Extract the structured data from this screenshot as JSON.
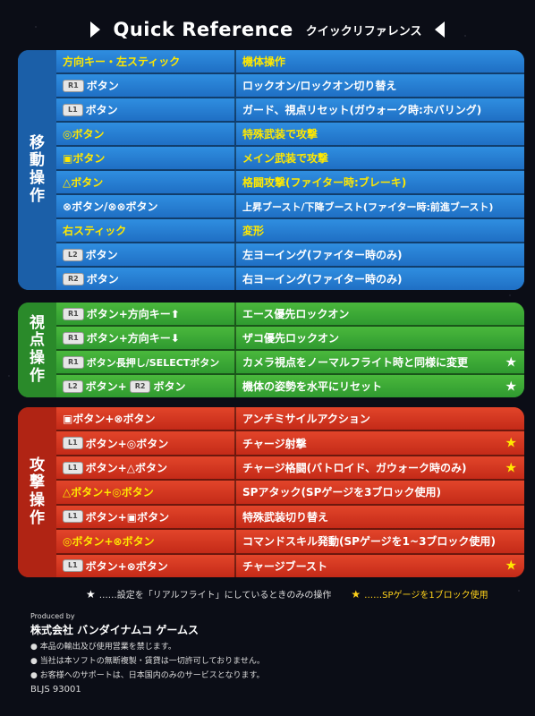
{
  "header": {
    "title_en": "Quick Reference",
    "title_jp": "クイックリファレンス"
  },
  "sections": {
    "move": {
      "label": [
        "移",
        "動",
        "操",
        "作"
      ],
      "rows": [
        {
          "left": "方向キー・左スティック",
          "right": "機体操作"
        },
        {
          "badge": "R1",
          "left": "ボタン",
          "right": "ロックオン/ロックオン切り替え"
        },
        {
          "badge": "L1",
          "left": "ボタン",
          "right": "ガード、視点リセット(ガウォーク時:ホバリング)"
        },
        {
          "left": "◎ボタン",
          "right": "特殊武装で攻撃"
        },
        {
          "left": "▣ボタン",
          "right": "メイン武装で攻撃"
        },
        {
          "left": "△ボタン",
          "right": "格闘攻撃(ファイター時:ブレーキ)"
        },
        {
          "left": "⊗ボタン/⊗⊗ボタン",
          "right": "上昇ブースト/下降ブースト(ファイター時:前進ブースト)"
        },
        {
          "left": "右スティック",
          "right": "変形"
        },
        {
          "badge": "L2",
          "left": "ボタン",
          "right": "左ヨーイング(ファイター時のみ)"
        },
        {
          "badge": "R2",
          "left": "ボタン",
          "right": "右ヨーイング(ファイター時のみ)"
        }
      ]
    },
    "view": {
      "label": [
        "視",
        "点",
        "操",
        "作"
      ],
      "rows": [
        {
          "badge": "R1",
          "left": "ボタン+方向キー⬆",
          "right": "エース優先ロックオン"
        },
        {
          "badge": "R1",
          "left": "ボタン+方向キー⬇",
          "right": "ザコ優先ロックオン"
        },
        {
          "badge": "R1",
          "left": "ボタン長押し/SELECTボタン",
          "right": "カメラ視点をノーマルフライト時と同様に変更",
          "star": "★"
        },
        {
          "badge": "L2",
          "left": "ボタン+",
          "badge2": "R2",
          "left2": "ボタン",
          "right": "機体の姿勢を水平にリセット",
          "star": "★"
        }
      ]
    },
    "attack": {
      "label": [
        "攻",
        "撃",
        "操",
        "作"
      ],
      "rows": [
        {
          "left": "▣ボタン+⊗ボタン",
          "right": "アンチミサイルアクション"
        },
        {
          "badge": "L1",
          "left": "ボタン+◎ボタン",
          "right": "チャージ射撃",
          "star": "★"
        },
        {
          "badge": "L1",
          "left": "ボタン+△ボタン",
          "right": "チャージ格闘(バトロイド、ガウォーク時のみ)",
          "star": "★"
        },
        {
          "left": "△ボタン+◎ボタン",
          "right": "SPアタック(SPゲージを3ブロック使用)"
        },
        {
          "badge": "L1",
          "left": "ボタン+▣ボタン",
          "right": "特殊武装切り替え"
        },
        {
          "left": "◎ボタン+⊗ボタン",
          "right": "コマンドスキル発動(SPゲージを1~3ブロック使用)"
        },
        {
          "badge": "L1",
          "left": "ボタン+⊗ボタン",
          "right": "チャージブースト",
          "star": "★"
        }
      ]
    }
  },
  "legend": {
    "white_star": "★",
    "white_text": "……設定を「リアルフライト」にしているときのみの操作",
    "yellow_star": "★",
    "yellow_text": "……SPゲージを1ブロック使用"
  },
  "footer": {
    "produced_by": "Produced by",
    "company": "株式会社 バンダイナムコ ゲームス",
    "notes": [
      "● 本品の輸出及び使用営業を禁じます。",
      "● 当社は本ソフトの無断複製・賃貸は一切許可しておりません。",
      "● お客様へのサポートは、日本国内のみのサービスとなります。"
    ],
    "code": "BLJS 93001"
  },
  "colors": {
    "move": "#1f6fc4",
    "view": "#2f9a30",
    "attack": "#c42a18",
    "highlight_text": "#ffe800"
  }
}
